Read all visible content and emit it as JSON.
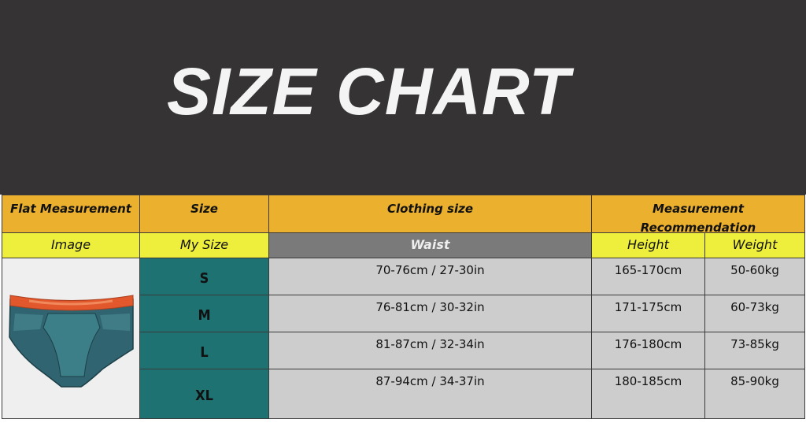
{
  "title": "SIZE CHART",
  "headers": {
    "flat_measurement": "Flat Measurement",
    "size": "Size",
    "clothing_size": "Clothing size",
    "measurement_recommendation": "Measurement Recommendation",
    "image": "Image",
    "my_size": "My Size",
    "waist": "Waist",
    "height": "Height",
    "weight": "Weight"
  },
  "rows": [
    {
      "size": "S",
      "waist": "70-76cm / 27-30in",
      "height": "165-170cm",
      "weight": "50-60kg"
    },
    {
      "size": "M",
      "waist": "76-81cm / 30-32in",
      "height": "171-175cm",
      "weight": "60-73kg"
    },
    {
      "size": "L",
      "waist": "81-87cm / 32-34in",
      "height": "176-180cm",
      "weight": "73-85kg"
    },
    {
      "size": "XL",
      "waist": "87-94cm / 34-37in",
      "height": "180-185cm",
      "weight": "85-90kg"
    }
  ],
  "colors": {
    "banner": "#353334",
    "header_orange": "#ebb12e",
    "header_yellow": "#eeee3c",
    "size_teal": "#1e7272",
    "value_gray": "#cdcdcd"
  },
  "image_icon": "briefs-icon"
}
